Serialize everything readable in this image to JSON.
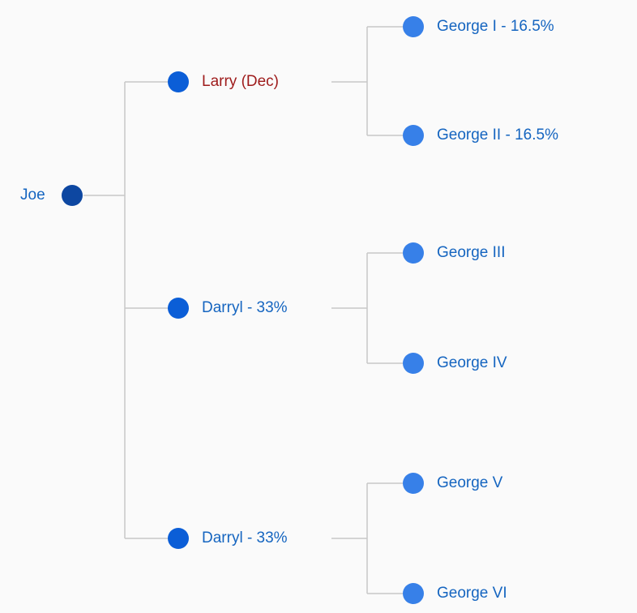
{
  "colors": {
    "root_node": "#0d47a1",
    "level1_node": "#0b5ed7",
    "level2_node": "#3780e8",
    "label": "#1565c0",
    "deceased_label": "#9e1b1b",
    "link": "#c8c8c8"
  },
  "tree": {
    "root": {
      "label": "Joe",
      "children": [
        {
          "label": "Larry (Dec)",
          "deceased": true,
          "children": [
            {
              "label": "George I - 16.5%"
            },
            {
              "label": "George II - 16.5%"
            }
          ]
        },
        {
          "label": "Darryl - 33%",
          "deceased": false,
          "children": [
            {
              "label": "George III"
            },
            {
              "label": "George IV"
            }
          ]
        },
        {
          "label": "Darryl - 33%",
          "deceased": false,
          "children": [
            {
              "label": "George V"
            },
            {
              "label": "George VI"
            }
          ]
        }
      ]
    }
  }
}
